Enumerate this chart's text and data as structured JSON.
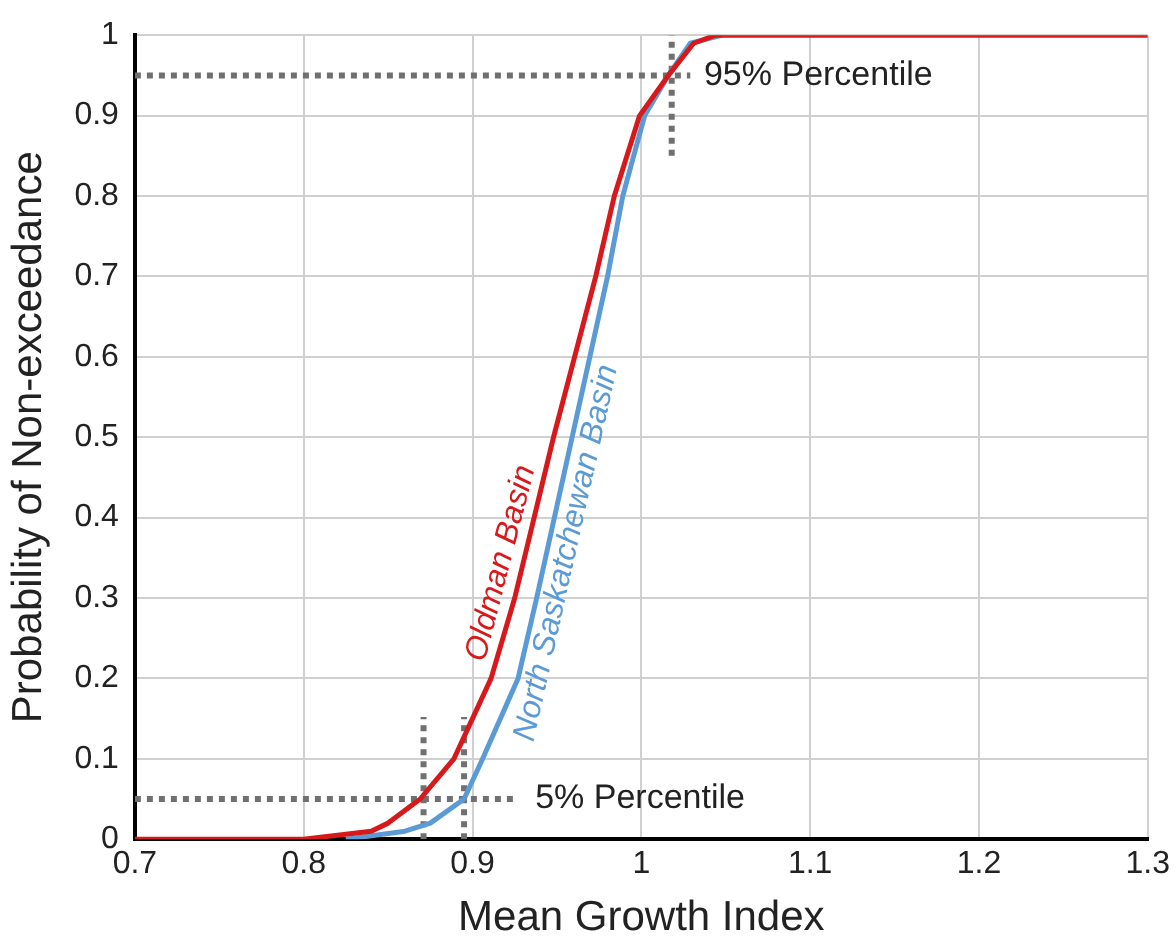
{
  "chart_data": {
    "type": "line",
    "xlabel": "Mean Growth Index",
    "ylabel": "Probability of Non-exceedance",
    "xlim": [
      0.7,
      1.3
    ],
    "xticks": [
      0.7,
      0.8,
      0.9,
      1,
      1.1,
      1.2,
      1.3
    ],
    "ylim": [
      0,
      1
    ],
    "yticks": [
      0,
      0.1,
      0.2,
      0.3,
      0.4,
      0.5,
      0.6,
      0.7,
      0.8,
      0.9,
      1
    ],
    "grid": true,
    "legend": false,
    "marker": "none",
    "line_style": "solid",
    "series": [
      {
        "name": "Oldman Basin",
        "color": "#d7191c",
        "x": [
          0.7,
          0.8,
          0.84,
          0.85,
          0.869,
          0.889,
          0.911,
          0.925,
          0.948,
          0.973,
          0.984,
          0.999,
          1.016,
          1.031,
          1.044,
          1.1,
          1.3
        ],
        "values": [
          0,
          0,
          0.01,
          0.02,
          0.05,
          0.1,
          0.2,
          0.3,
          0.5,
          0.7,
          0.8,
          0.9,
          0.95,
          0.99,
          1,
          1,
          1
        ]
      },
      {
        "name": "North Saskatchewan Basin",
        "color": "#5b9bd5",
        "x": [
          0.825,
          0.86,
          0.875,
          0.895,
          0.906,
          0.927,
          0.938,
          0.959,
          0.98,
          0.989,
          1.002,
          1.016,
          1.029,
          1.048
        ],
        "values": [
          0,
          0.01,
          0.02,
          0.05,
          0.1,
          0.2,
          0.3,
          0.5,
          0.7,
          0.8,
          0.9,
          0.95,
          0.99,
          1
        ]
      },
      {
        "color": "#707070",
        "line_style": "dotted",
        "x": [
          0.7,
          1.029
        ],
        "values": [
          0.95,
          0.95
        ]
      },
      {
        "color": "#707070",
        "line_style": "dotted",
        "x": [
          1.018,
          1.018
        ],
        "values": [
          0.85,
          1
        ]
      },
      {
        "color": "#707070",
        "line_style": "dotted",
        "x": [
          0.7,
          0.927
        ],
        "values": [
          0.05,
          0.05
        ]
      },
      {
        "color": "#707070",
        "line_style": "dotted",
        "x": [
          0.871,
          0.871
        ],
        "values": [
          0,
          0.152
        ]
      },
      {
        "color": "#707070",
        "line_style": "dotted",
        "x": [
          0.895,
          0.895
        ],
        "values": [
          0,
          0.152
        ]
      }
    ],
    "annotations": [
      {
        "text": "95% Percentile",
        "x": 1.03,
        "y": 0.95
      },
      {
        "text": "5% Percentile",
        "x": 0.93,
        "y": 0.05
      }
    ]
  }
}
